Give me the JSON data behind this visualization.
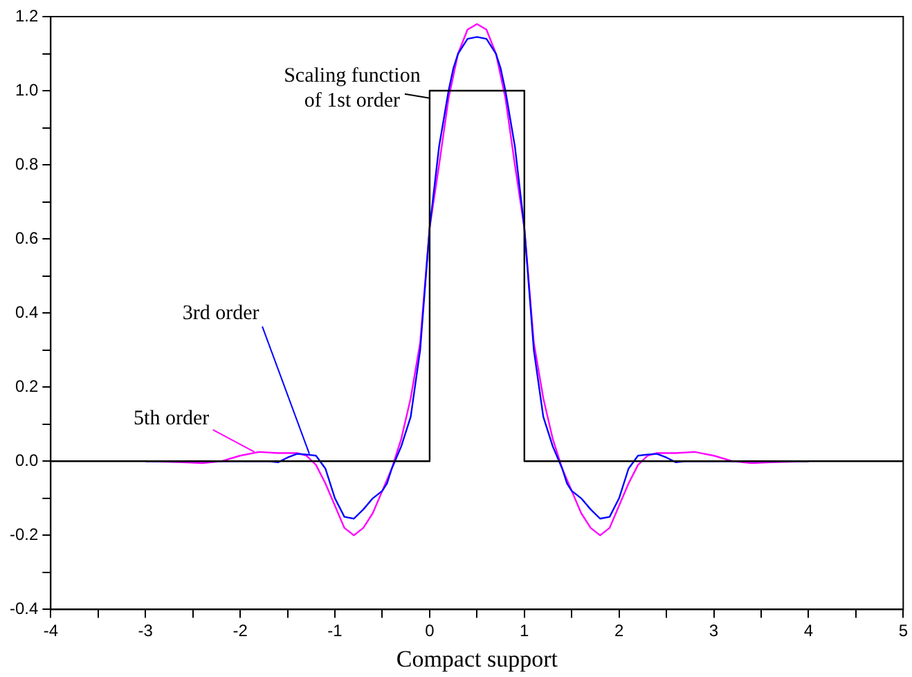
{
  "chart_data": {
    "type": "line",
    "xlabel": "Compact support",
    "xlim": [
      -4,
      5
    ],
    "xticks": [
      -4,
      {
        "value": -3.5,
        "label": null
      },
      -3,
      {
        "value": -2.5,
        "label": null
      },
      -2,
      {
        "value": -1.5,
        "label": null
      },
      -1,
      {
        "value": -0.5,
        "label": null
      },
      0,
      {
        "value": 0.5,
        "label": null
      },
      1,
      {
        "value": 1.5,
        "label": null
      },
      2,
      {
        "value": 2.5,
        "label": null
      },
      3,
      {
        "value": 3.5,
        "label": null
      },
      4,
      {
        "value": 4.5,
        "label": null
      },
      5
    ],
    "ylim": [
      -0.4,
      1.2
    ],
    "yticks": [
      {
        "value": -0.4,
        "label": "-0.4"
      },
      {
        "value": -0.3,
        "label": null
      },
      {
        "value": -0.2,
        "label": "-0.2"
      },
      {
        "value": -0.1,
        "label": null
      },
      {
        "value": 0,
        "label": "0.0"
      },
      {
        "value": 0.1,
        "label": null
      },
      {
        "value": 0.2,
        "label": "0.2"
      },
      {
        "value": 0.3,
        "label": null
      },
      {
        "value": 0.4,
        "label": "0.4"
      },
      {
        "value": 0.5,
        "label": null
      },
      {
        "value": 0.6,
        "label": "0.6"
      },
      {
        "value": 0.7,
        "label": null
      },
      {
        "value": 0.8,
        "label": "0.8"
      },
      {
        "value": 0.9,
        "label": null
      },
      {
        "value": 1.0,
        "label": "1.0"
      },
      {
        "value": 1.1,
        "label": null
      },
      {
        "value": 1.2,
        "label": "1.2"
      }
    ],
    "grid": false,
    "legend": false,
    "marker": "none",
    "line_style": "solid",
    "series": [
      {
        "color": "#000000",
        "x": [
          -4,
          0,
          0,
          1,
          1,
          5
        ],
        "values": [
          0,
          0,
          1,
          1,
          0,
          0
        ]
      },
      {
        "color": "#0000ff",
        "x": [
          -3,
          -2,
          -1.7,
          -1.6,
          -1.5,
          -1.4,
          -1.3,
          -1.2,
          -1.1,
          -1,
          -0.9,
          -0.8,
          -0.7,
          -0.6,
          -0.5,
          -0.45,
          -0.4,
          -0.3,
          -0.2,
          -0.1,
          0,
          0.1,
          0.2,
          0.25,
          0.3,
          0.4,
          0.5,
          0.6,
          0.7,
          0.75,
          0.8,
          0.9,
          1,
          1.1,
          1.2,
          1.3,
          1.4,
          1.45,
          1.5,
          1.6,
          1.7,
          1.8,
          1.9,
          2,
          2.1,
          2.2,
          2.3,
          2.4,
          2.5,
          2.6,
          2.7,
          3,
          4
        ],
        "values": [
          0,
          0,
          0,
          -0.003,
          0.01,
          0.02,
          0.018,
          0.015,
          -0.02,
          -0.1,
          -0.15,
          -0.155,
          -0.13,
          -0.1,
          -0.08,
          -0.06,
          -0.02,
          0.04,
          0.12,
          0.3,
          0.63,
          0.85,
          1,
          1.06,
          1.1,
          1.14,
          1.145,
          1.14,
          1.1,
          1.06,
          1,
          0.85,
          0.63,
          0.3,
          0.12,
          0.04,
          -0.02,
          -0.06,
          -0.08,
          -0.1,
          -0.13,
          -0.155,
          -0.15,
          -0.1,
          -0.02,
          0.015,
          0.018,
          0.02,
          0.01,
          -0.003,
          0,
          0,
          0
        ]
      },
      {
        "color": "#ff00ff",
        "x": [
          -3,
          -2.6,
          -2.4,
          -2.2,
          -2,
          -1.8,
          -1.6,
          -1.4,
          -1.3,
          -1.2,
          -1.1,
          -1,
          -0.9,
          -0.8,
          -0.7,
          -0.6,
          -0.5,
          -0.4,
          -0.3,
          -0.2,
          -0.1,
          0,
          0.1,
          0.2,
          0.3,
          0.4,
          0.5,
          0.6,
          0.7,
          0.8,
          0.9,
          1,
          1.1,
          1.2,
          1.3,
          1.4,
          1.5,
          1.6,
          1.7,
          1.8,
          1.9,
          2,
          2.1,
          2.2,
          2.3,
          2.4,
          2.6,
          2.8,
          3,
          3.2,
          3.4,
          3.6,
          4
        ],
        "values": [
          0,
          -0.003,
          -0.005,
          0,
          0.015,
          0.025,
          0.022,
          0.022,
          0.015,
          -0.01,
          -0.06,
          -0.12,
          -0.18,
          -0.2,
          -0.18,
          -0.14,
          -0.08,
          -0.02,
          0.06,
          0.17,
          0.32,
          0.63,
          0.8,
          0.98,
          1.1,
          1.165,
          1.18,
          1.165,
          1.1,
          0.98,
          0.8,
          0.63,
          0.32,
          0.17,
          0.06,
          -0.02,
          -0.08,
          -0.14,
          -0.18,
          -0.2,
          -0.18,
          -0.12,
          -0.06,
          -0.01,
          0.015,
          0.022,
          0.022,
          0.025,
          0.015,
          0,
          -0.005,
          -0.003,
          0
        ]
      }
    ],
    "annotations": [
      {
        "text": "Scaling function of 1st order",
        "x": 0,
        "y": 0.98
      },
      {
        "text": "3rd order",
        "x": -1.27,
        "y": 0.02
      },
      {
        "text": "5th order",
        "x": -1.85,
        "y": 0.025
      }
    ]
  }
}
